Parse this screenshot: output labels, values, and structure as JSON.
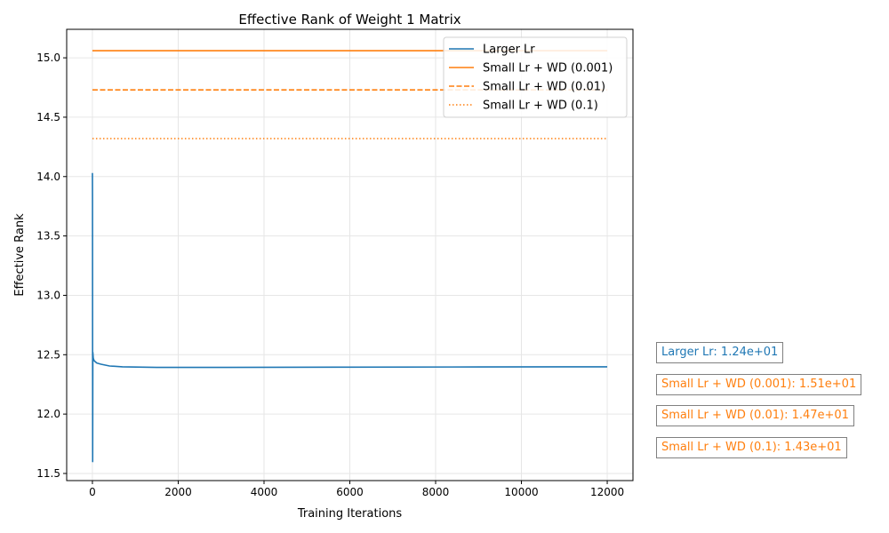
{
  "chart_data": {
    "type": "line",
    "title": "Effective Rank of Weight 1 Matrix",
    "xlabel": "Training Iterations",
    "ylabel": "Effective Rank",
    "xlim": [
      -600,
      12600
    ],
    "ylim": [
      11.44,
      15.24
    ],
    "xticks": [
      0,
      2000,
      4000,
      6000,
      8000,
      10000,
      12000
    ],
    "yticks": [
      11.5,
      12.0,
      12.5,
      13.0,
      13.5,
      14.0,
      14.5,
      15.0
    ],
    "grid": true,
    "legend": "top-right",
    "series": [
      {
        "name": "Larger Lr",
        "color": "#1f77b4",
        "style": "solid",
        "points": [
          [
            0,
            14.03
          ],
          [
            2,
            13.8
          ],
          [
            4,
            12.6
          ],
          [
            6,
            11.6
          ],
          [
            10,
            12.52
          ],
          [
            20,
            12.47
          ],
          [
            40,
            12.45
          ],
          [
            100,
            12.43
          ],
          [
            200,
            12.42
          ],
          [
            400,
            12.405
          ],
          [
            700,
            12.398
          ],
          [
            1500,
            12.393
          ],
          [
            3000,
            12.393
          ],
          [
            6000,
            12.395
          ],
          [
            9000,
            12.397
          ],
          [
            12000,
            12.398
          ]
        ]
      },
      {
        "name": "Small Lr + WD (0.001)",
        "color": "#ff7f0e",
        "style": "solid",
        "points": [
          [
            0,
            15.06
          ],
          [
            12000,
            15.06
          ]
        ]
      },
      {
        "name": "Small Lr + WD (0.01)",
        "color": "#ff7f0e",
        "style": "dashed",
        "points": [
          [
            0,
            14.73
          ],
          [
            12000,
            14.73
          ]
        ]
      },
      {
        "name": "Small Lr + WD (0.1)",
        "color": "#ff7f0e",
        "style": "dotted",
        "points": [
          [
            0,
            14.32
          ],
          [
            12000,
            14.32
          ]
        ]
      }
    ],
    "annotations": [
      {
        "text": "Larger Lr: 1.24e+01",
        "color": "#1f77b4"
      },
      {
        "text": "Small Lr + WD (0.001): 1.51e+01",
        "color": "#ff7f0e"
      },
      {
        "text": "Small Lr + WD (0.01): 1.47e+01",
        "color": "#ff7f0e"
      },
      {
        "text": "Small Lr + WD (0.1): 1.43e+01",
        "color": "#ff7f0e"
      }
    ]
  }
}
